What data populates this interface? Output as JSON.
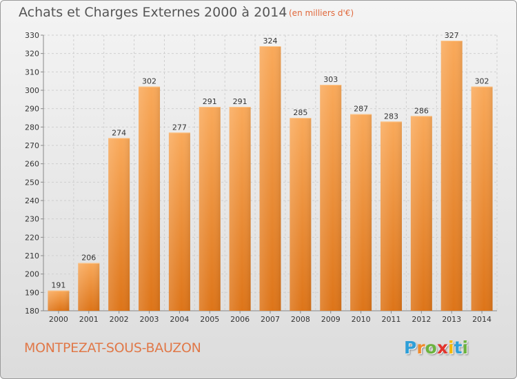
{
  "header": {
    "title": "Achats et Charges Externes 2000 à 2014",
    "subtitle": "(en milliers d'€)"
  },
  "footer": {
    "place": "MONTPEZAT-SOUS-BAUZON",
    "logo_letters": [
      {
        "ch": "P",
        "color": "#2f9fd8"
      },
      {
        "ch": "r",
        "color": "#f08a2c"
      },
      {
        "ch": "o",
        "color": "#6cb33f"
      },
      {
        "ch": "x",
        "color": "#e2332c"
      },
      {
        "ch": "i",
        "color": "#f6b800"
      },
      {
        "ch": "t",
        "color": "#2f9fd8"
      },
      {
        "ch": "i",
        "color": "#6cb33f"
      }
    ]
  },
  "chart_data": {
    "type": "bar",
    "categories": [
      "2000",
      "2001",
      "2002",
      "2003",
      "2004",
      "2005",
      "2006",
      "2007",
      "2008",
      "2009",
      "2010",
      "2011",
      "2012",
      "2013",
      "2014"
    ],
    "values": [
      191,
      206,
      274,
      302,
      277,
      291,
      291,
      324,
      285,
      303,
      287,
      283,
      286,
      327,
      302
    ],
    "ylim": [
      180,
      330
    ],
    "yticks": [
      180,
      190,
      200,
      210,
      220,
      230,
      240,
      250,
      260,
      270,
      280,
      290,
      300,
      310,
      320,
      330
    ],
    "grid": true,
    "bar_color": "#f0902c"
  }
}
